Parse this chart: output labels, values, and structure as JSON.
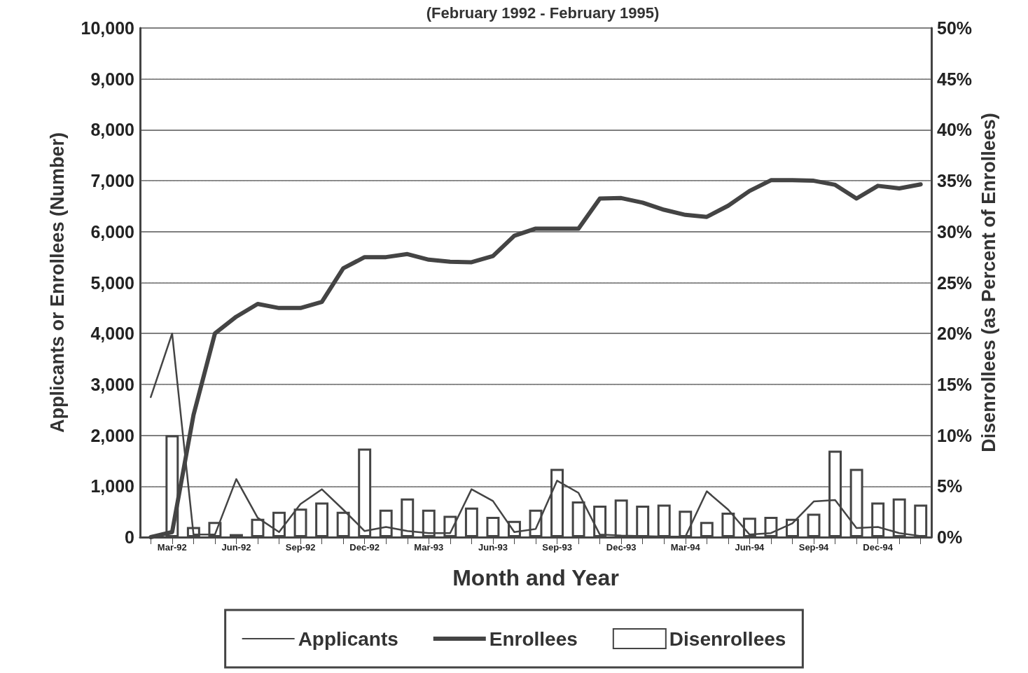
{
  "chart_data": {
    "type": "line",
    "title": "(February 1992 - February 1995)",
    "xlabel": "Month and Year",
    "ylabel": "Applicants or Enrollees (Number)",
    "y2label": "Disenrollees (as Percent of Enrollees)",
    "categories": [
      null,
      "Mar-92",
      null,
      null,
      "Jun-92",
      null,
      null,
      "Sep-92",
      null,
      null,
      "Dec-92",
      null,
      null,
      "Mar-93",
      null,
      null,
      "Jun-93",
      null,
      null,
      "Sep-93",
      null,
      null,
      "Dec-93",
      null,
      null,
      "Mar-94",
      null,
      null,
      "Jun-94",
      null,
      null,
      "Sep-94",
      null,
      null,
      "Dec-94",
      null,
      null
    ],
    "series": [
      {
        "name": "Applicants",
        "color": "#444444",
        "values": [
          2750,
          4000,
          50,
          50,
          1140,
          380,
          100,
          650,
          940,
          540,
          120,
          200,
          120,
          80,
          80,
          940,
          710,
          100,
          160,
          1110,
          870,
          50,
          30,
          20,
          10,
          10,
          900,
          540,
          50,
          80,
          270,
          700,
          730,
          180,
          200,
          80,
          20
        ]
      },
      {
        "name": "Enrollees",
        "color": "#444444",
        "values": [
          0,
          100,
          2400,
          4000,
          4330,
          4580,
          4500,
          4500,
          4620,
          5280,
          5500,
          5500,
          5560,
          5450,
          5410,
          5400,
          5520,
          5920,
          6060,
          6060,
          6060,
          6650,
          6660,
          6570,
          6430,
          6330,
          6290,
          6510,
          6800,
          7010,
          7010,
          7000,
          6920,
          6650,
          6900,
          6850,
          6930
        ]
      },
      {
        "name": "Disenrollees",
        "type": "bar",
        "axis": "y2",
        "color": "#ffffff",
        "values": [
          null,
          10,
          1.0,
          1.5,
          0.3,
          1.8,
          2.5,
          2.8,
          3.4,
          2.5,
          8.7,
          2.7,
          3.8,
          2.7,
          2.1,
          2.9,
          2.0,
          1.6,
          2.7,
          6.7,
          3.5,
          3.1,
          3.7,
          3.1,
          3.2,
          2.6,
          1.5,
          2.4,
          1.9,
          2.0,
          1.8,
          2.3,
          8.5,
          6.7,
          3.4,
          3.8,
          3.2
        ]
      }
    ],
    "ylim": [
      0,
      10000
    ],
    "yticks": [
      0,
      {
        "value": 1000,
        "label": "1,000"
      },
      {
        "value": 2000,
        "label": "2,000"
      },
      {
        "value": 3000,
        "label": "3,000"
      },
      {
        "value": 4000,
        "label": "4,000"
      },
      {
        "value": 5000,
        "label": "5,000"
      },
      {
        "value": 6000,
        "label": "6,000"
      },
      {
        "value": 7000,
        "label": "7,000"
      },
      {
        "value": 8000,
        "label": "8,000"
      },
      {
        "value": 9000,
        "label": "9,000"
      },
      {
        "value": 10000,
        "label": "10,000"
      }
    ],
    "y2lim": [
      0,
      50
    ],
    "y2ticks": [
      {
        "value": 0,
        "label": "0%"
      },
      {
        "value": 5,
        "label": "5%"
      },
      {
        "value": 10,
        "label": "10%"
      },
      {
        "value": 15,
        "label": "15%"
      },
      {
        "value": 20,
        "label": "20%"
      },
      {
        "value": 25,
        "label": "25%"
      },
      {
        "value": 30,
        "label": "30%"
      },
      {
        "value": 35,
        "label": "35%"
      },
      {
        "value": 40,
        "label": "40%"
      },
      {
        "value": 45,
        "label": "45%"
      },
      {
        "value": 50,
        "label": "50%"
      }
    ],
    "grid": "y",
    "legend": "bottom",
    "marker": "none",
    "line_style": "solid"
  }
}
